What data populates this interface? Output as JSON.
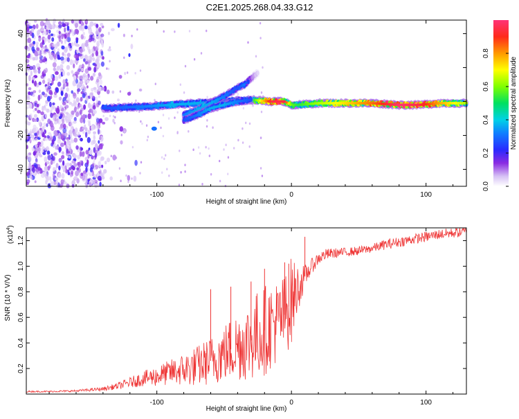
{
  "title": "C2E1.2025.268.04.33.G12",
  "chart_data": [
    {
      "type": "heatmap",
      "title": "C2E1.2025.268.04.33.G12",
      "xlabel": "Height of straight line (km)",
      "ylabel": "Frequency (Hz)",
      "xlim": [
        -197,
        130
      ],
      "ylim": [
        -50,
        48
      ],
      "x_ticks": [
        -100,
        0,
        100
      ],
      "x_tick_labels": [
        "-100",
        "0",
        "100"
      ],
      "y_ticks": [
        -40,
        -20,
        0,
        20,
        40
      ],
      "y_tick_labels": [
        "-40",
        "-20",
        "0",
        "20",
        "40"
      ],
      "colorbar": {
        "label": "Normalized spectral amplitude",
        "range": [
          0,
          1
        ],
        "ticks": [
          0.0,
          0.2,
          0.4,
          0.6,
          0.8
        ],
        "tick_labels": [
          "0.0",
          "0.2",
          "0.4",
          "0.6",
          "0.8"
        ]
      },
      "noise_region": {
        "x": [
          -197,
          -140
        ],
        "density": "high"
      },
      "ridges": [
        {
          "name": "main ridge",
          "points": [
            [
              -140,
              -4
            ],
            [
              -110,
              -3
            ],
            [
              -90,
              -2
            ],
            [
              -70,
              -1
            ],
            [
              -50,
              0
            ],
            [
              -30,
              1
            ],
            [
              -15,
              0
            ],
            [
              -5,
              0
            ],
            [
              0,
              -2
            ],
            [
              5,
              -2
            ],
            [
              20,
              -1
            ],
            [
              60,
              -1
            ],
            [
              80,
              -2
            ],
            [
              95,
              -2
            ],
            [
              110,
              -1
            ],
            [
              130,
              -1
            ]
          ],
          "amplitude": [
            0.25,
            0.3,
            0.35,
            0.35,
            0.3,
            0.45,
            0.9,
            0.9,
            0.55,
            0.5,
            0.6,
            0.8,
            0.95,
            0.9,
            0.75,
            0.6
          ]
        },
        {
          "name": "upper branch",
          "points": [
            [
              -80,
              -8
            ],
            [
              -70,
              -5
            ],
            [
              -60,
              -1
            ],
            [
              -50,
              3
            ],
            [
              -40,
              8
            ],
            [
              -35,
              10
            ],
            [
              -25,
              17
            ]
          ],
          "amplitude": [
            0.3,
            0.35,
            0.35,
            0.3,
            0.25,
            0.3,
            0.05
          ]
        },
        {
          "name": "lower branch",
          "points": [
            [
              -80,
              -11
            ],
            [
              -70,
              -8
            ],
            [
              -60,
              -4
            ],
            [
              -50,
              -2
            ],
            [
              -40,
              0
            ],
            [
              -30,
              1
            ]
          ],
          "amplitude": [
            0.25,
            0.3,
            0.35,
            0.35,
            0.3,
            0.25
          ]
        }
      ]
    },
    {
      "type": "line",
      "xlabel": "Height of straight line (km)",
      "ylabel": "SNR (10 * V/V)",
      "y_multiplier": "(x10",
      "y_multiplier_exp": "4",
      "y_multiplier_close": ")",
      "xlim": [
        -197,
        130
      ],
      "ylim": [
        0,
        13000
      ],
      "x_ticks": [
        -100,
        0,
        100
      ],
      "x_tick_labels": [
        "-100",
        "0",
        "100"
      ],
      "y_ticks": [
        2000,
        4000,
        6000,
        8000,
        10000,
        12000
      ],
      "y_tick_labels": [
        "0.2",
        "0.4",
        "0.6",
        "0.8",
        "1.0",
        "1.2"
      ],
      "color": "#ee3333",
      "series": [
        {
          "name": "SNR",
          "x": [
            -197,
            -180,
            -160,
            -140,
            -130,
            -120,
            -110,
            -100,
            -90,
            -80,
            -70,
            -60,
            -50,
            -40,
            -30,
            -25,
            -20,
            -15,
            -10,
            -5,
            0,
            5,
            10,
            15,
            20,
            25,
            30,
            40,
            50,
            60,
            70,
            80,
            90,
            100,
            110,
            120,
            130
          ],
          "values": [
            200,
            200,
            250,
            400,
            600,
            900,
            1200,
            1400,
            1700,
            1900,
            2200,
            2600,
            3200,
            3800,
            4200,
            4700,
            5000,
            5400,
            5700,
            6200,
            7300,
            8300,
            9200,
            10000,
            10600,
            10900,
            11000,
            11100,
            11200,
            11400,
            11700,
            11900,
            12100,
            12300,
            12500,
            12600,
            12700
          ],
          "noise_amplitude": [
            60,
            60,
            80,
            150,
            250,
            400,
            600,
            800,
            1000,
            1300,
            1600,
            1900,
            2300,
            2800,
            3200,
            3500,
            3600,
            3400,
            3300,
            3200,
            3500,
            1800,
            900,
            600,
            500,
            450,
            400,
            350,
            350,
            350,
            400,
            400,
            400,
            400,
            400,
            400,
            400
          ],
          "spikes": [
            [
              -60,
              8200
            ],
            [
              -45,
              8400
            ],
            [
              -30,
              8800
            ],
            [
              -20,
              9800
            ],
            [
              -5,
              10300
            ],
            [
              -2,
              10200
            ],
            [
              10,
              12300
            ]
          ]
        }
      ]
    }
  ]
}
